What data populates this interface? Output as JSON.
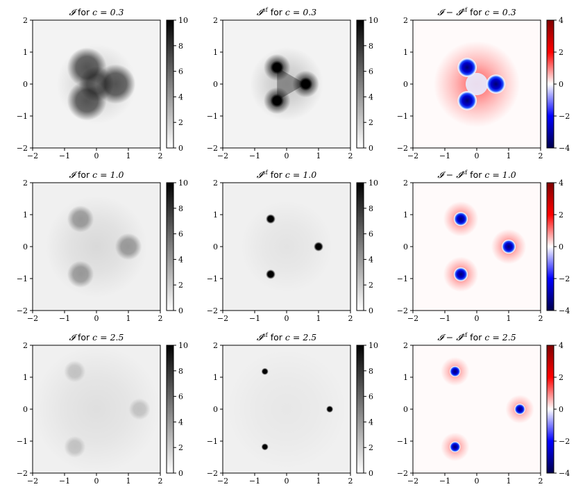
{
  "figure": {
    "layout": "3x3 grid of heatmaps with colorbars",
    "colormaps": {
      "intensity": "gray_r",
      "difference": "seismic"
    }
  },
  "chart_data": [
    {
      "type": "heatmap",
      "row": 0,
      "col": 0,
      "title": {
        "sym": "𝓘",
        "sup": "",
        "word": "for",
        "c": "c = 0.3"
      },
      "quantity": "I",
      "c": 0.3,
      "xlim": [
        -2,
        2
      ],
      "ylim": [
        -2,
        2
      ],
      "xticks": [
        "−2",
        "−1",
        "0",
        "1",
        "2"
      ],
      "yticks": [
        "−2",
        "−1",
        "0",
        "1",
        "2"
      ],
      "colorbar": {
        "cmap": "gray_r",
        "range": [
          0,
          10
        ],
        "ticks": [
          "0",
          "2",
          "4",
          "6",
          "8",
          "10"
        ]
      },
      "spots": [
        {
          "x": 0.6,
          "y": 0.0
        },
        {
          "x": -0.3,
          "y": 0.52
        },
        {
          "x": -0.3,
          "y": -0.52
        }
      ]
    },
    {
      "type": "heatmap",
      "row": 0,
      "col": 1,
      "title": {
        "sym": "𝓘",
        "sup": "sf",
        "word": "for",
        "c": "c = 0.3"
      },
      "quantity": "I_sf",
      "c": 0.3,
      "xlim": [
        -2,
        2
      ],
      "ylim": [
        -2,
        2
      ],
      "xticks": [
        "−2",
        "−1",
        "0",
        "1",
        "2"
      ],
      "yticks": [
        "−2",
        "−1",
        "0",
        "1",
        "2"
      ],
      "colorbar": {
        "cmap": "gray_r",
        "range": [
          0,
          10
        ],
        "ticks": [
          "0",
          "2",
          "4",
          "6",
          "8",
          "10"
        ]
      },
      "spots": [
        {
          "x": 0.6,
          "y": 0.0
        },
        {
          "x": -0.3,
          "y": 0.52
        },
        {
          "x": -0.3,
          "y": -0.52
        }
      ]
    },
    {
      "type": "heatmap",
      "row": 0,
      "col": 2,
      "title": {
        "sym": "𝓘 − 𝓘",
        "sup": "sf",
        "word": "for",
        "c": "c = 0.3"
      },
      "quantity": "I - I_sf",
      "c": 0.3,
      "xlim": [
        -2,
        2
      ],
      "ylim": [
        -2,
        2
      ],
      "xticks": [
        "−2",
        "−1",
        "0",
        "1",
        "2"
      ],
      "yticks": [
        "−2",
        "−1",
        "0",
        "1",
        "2"
      ],
      "colorbar": {
        "cmap": "seismic",
        "range": [
          -4,
          4
        ],
        "ticks": [
          "−4",
          "−2",
          "0",
          "2",
          "4"
        ]
      },
      "spots": [
        {
          "x": 0.6,
          "y": 0.0
        },
        {
          "x": -0.3,
          "y": 0.52
        },
        {
          "x": -0.3,
          "y": -0.52
        }
      ]
    },
    {
      "type": "heatmap",
      "row": 1,
      "col": 0,
      "title": {
        "sym": "𝓘",
        "sup": "",
        "word": "for",
        "c": "c = 1.0"
      },
      "quantity": "I",
      "c": 1.0,
      "xlim": [
        -2,
        2
      ],
      "ylim": [
        -2,
        2
      ],
      "xticks": [
        "−2",
        "−1",
        "0",
        "1",
        "2"
      ],
      "yticks": [
        "−2",
        "−1",
        "0",
        "1",
        "2"
      ],
      "colorbar": {
        "cmap": "gray_r",
        "range": [
          0,
          10
        ],
        "ticks": [
          "0",
          "2",
          "4",
          "6",
          "8",
          "10"
        ]
      },
      "spots": [
        {
          "x": 1.0,
          "y": 0.0
        },
        {
          "x": -0.5,
          "y": 0.866
        },
        {
          "x": -0.5,
          "y": -0.866
        }
      ]
    },
    {
      "type": "heatmap",
      "row": 1,
      "col": 1,
      "title": {
        "sym": "𝓘",
        "sup": "sf",
        "word": "for",
        "c": "c = 1.0"
      },
      "quantity": "I_sf",
      "c": 1.0,
      "xlim": [
        -2,
        2
      ],
      "ylim": [
        -2,
        2
      ],
      "xticks": [
        "−2",
        "−1",
        "0",
        "1",
        "2"
      ],
      "yticks": [
        "−2",
        "−1",
        "0",
        "1",
        "2"
      ],
      "colorbar": {
        "cmap": "gray_r",
        "range": [
          0,
          10
        ],
        "ticks": [
          "0",
          "2",
          "4",
          "6",
          "8",
          "10"
        ]
      },
      "spots": [
        {
          "x": 1.0,
          "y": 0.0
        },
        {
          "x": -0.5,
          "y": 0.866
        },
        {
          "x": -0.5,
          "y": -0.866
        }
      ]
    },
    {
      "type": "heatmap",
      "row": 1,
      "col": 2,
      "title": {
        "sym": "𝓘 − 𝓘",
        "sup": "sf",
        "word": "for",
        "c": "c = 1.0"
      },
      "quantity": "I - I_sf",
      "c": 1.0,
      "xlim": [
        -2,
        2
      ],
      "ylim": [
        -2,
        2
      ],
      "xticks": [
        "−2",
        "−1",
        "0",
        "1",
        "2"
      ],
      "yticks": [
        "−2",
        "−1",
        "0",
        "1",
        "2"
      ],
      "colorbar": {
        "cmap": "seismic",
        "range": [
          -4,
          4
        ],
        "ticks": [
          "−4",
          "−2",
          "0",
          "2",
          "4"
        ]
      },
      "spots": [
        {
          "x": 1.0,
          "y": 0.0
        },
        {
          "x": -0.5,
          "y": 0.866
        },
        {
          "x": -0.5,
          "y": -0.866
        }
      ]
    },
    {
      "type": "heatmap",
      "row": 2,
      "col": 0,
      "title": {
        "sym": "𝓘",
        "sup": "",
        "word": "for",
        "c": "c = 2.5"
      },
      "quantity": "I",
      "c": 2.5,
      "xlim": [
        -2,
        2
      ],
      "ylim": [
        -2,
        2
      ],
      "xticks": [
        "−2",
        "−1",
        "0",
        "1",
        "2"
      ],
      "yticks": [
        "−2",
        "−1",
        "0",
        "1",
        "2"
      ],
      "colorbar": {
        "cmap": "gray_r",
        "range": [
          0,
          10
        ],
        "ticks": [
          "0",
          "2",
          "4",
          "6",
          "8",
          "10"
        ]
      },
      "spots": [
        {
          "x": 1.35,
          "y": 0.0
        },
        {
          "x": -0.68,
          "y": 1.18
        },
        {
          "x": -0.68,
          "y": -1.18
        }
      ]
    },
    {
      "type": "heatmap",
      "row": 2,
      "col": 1,
      "title": {
        "sym": "𝓘",
        "sup": "sf",
        "word": "for",
        "c": "c = 2.5"
      },
      "quantity": "I_sf",
      "c": 2.5,
      "xlim": [
        -2,
        2
      ],
      "ylim": [
        -2,
        2
      ],
      "xticks": [
        "−2",
        "−1",
        "0",
        "1",
        "2"
      ],
      "yticks": [
        "−2",
        "−1",
        "0",
        "1",
        "2"
      ],
      "colorbar": {
        "cmap": "gray_r",
        "range": [
          0,
          10
        ],
        "ticks": [
          "0",
          "2",
          "4",
          "6",
          "8",
          "10"
        ]
      },
      "spots": [
        {
          "x": 1.35,
          "y": 0.0
        },
        {
          "x": -0.68,
          "y": 1.18
        },
        {
          "x": -0.68,
          "y": -1.18
        }
      ]
    },
    {
      "type": "heatmap",
      "row": 2,
      "col": 2,
      "title": {
        "sym": "𝓘 − 𝓘",
        "sup": "sf",
        "word": "for",
        "c": "c = 2.5"
      },
      "quantity": "I - I_sf",
      "c": 2.5,
      "xlim": [
        -2,
        2
      ],
      "ylim": [
        -2,
        2
      ],
      "xticks": [
        "−2",
        "−1",
        "0",
        "1",
        "2"
      ],
      "yticks": [
        "−2",
        "−1",
        "0",
        "1",
        "2"
      ],
      "colorbar": {
        "cmap": "seismic",
        "range": [
          -4,
          4
        ],
        "ticks": [
          "−4",
          "−2",
          "0",
          "2",
          "4"
        ]
      },
      "spots": [
        {
          "x": 1.35,
          "y": 0.0
        },
        {
          "x": -0.68,
          "y": 1.18
        },
        {
          "x": -0.68,
          "y": -1.18
        }
      ]
    }
  ]
}
